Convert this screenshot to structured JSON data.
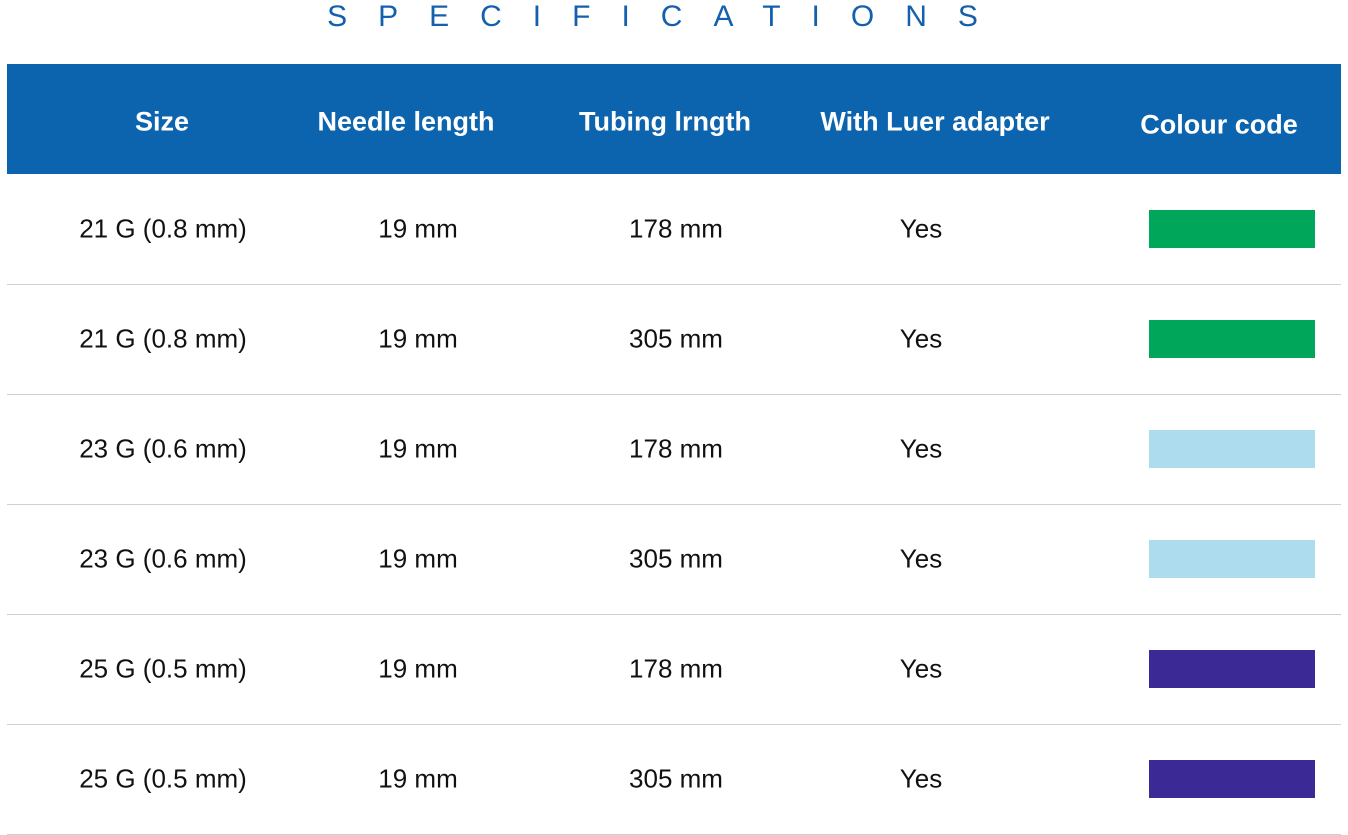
{
  "title": "SPECIFICATIONS",
  "columns": [
    "Size",
    "Needle length",
    "Tubing lrngth",
    "With Luer adapter",
    "Colour code"
  ],
  "rows": [
    {
      "size": "21 G (0.8 mm)",
      "needle": "19 mm",
      "tubing": "178 mm",
      "luer": "Yes",
      "colour": "#00a65a"
    },
    {
      "size": "21 G (0.8 mm)",
      "needle": "19 mm",
      "tubing": "305 mm",
      "luer": "Yes",
      "colour": "#00a65a"
    },
    {
      "size": "23 G (0.6 mm)",
      "needle": "19 mm",
      "tubing": "178 mm",
      "luer": "Yes",
      "colour": "#addcef"
    },
    {
      "size": "23 G (0.6 mm)",
      "needle": "19 mm",
      "tubing": "305 mm",
      "luer": "Yes",
      "colour": "#addcef"
    },
    {
      "size": "25 G (0.5 mm)",
      "needle": "19 mm",
      "tubing": "178 mm",
      "luer": "Yes",
      "colour": "#3b2a96"
    },
    {
      "size": "25 G (0.5 mm)",
      "needle": "19 mm",
      "tubing": "305 mm",
      "luer": "Yes",
      "colour": "#3b2a96"
    }
  ],
  "colors": {
    "header": "#0d64ae",
    "title": "#1560ad"
  }
}
